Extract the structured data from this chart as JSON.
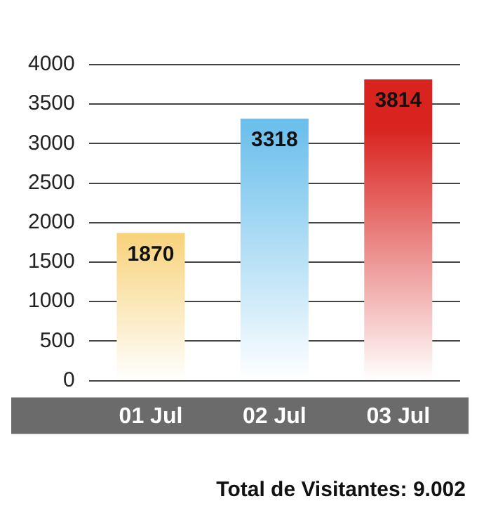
{
  "chart_data": {
    "type": "bar",
    "categories": [
      "01 Jul",
      "02 Jul",
      "03 Jul"
    ],
    "values": [
      1870,
      3318,
      3814
    ],
    "colors": [
      "#f2b21a",
      "#6cc0ec",
      "#d9231f"
    ],
    "ylim": [
      0,
      4000
    ],
    "yticks": [
      0,
      500,
      1000,
      1500,
      2000,
      2500,
      3000,
      3500,
      4000
    ],
    "grid": "y",
    "data_labels": true,
    "legend": false,
    "annotations": [
      "Total de Visitantes: 9.002"
    ]
  }
}
